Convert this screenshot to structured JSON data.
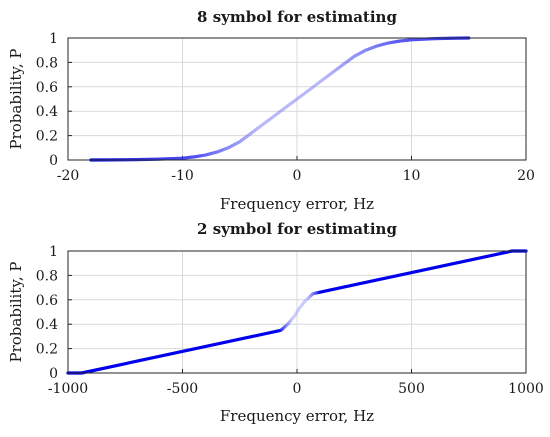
{
  "chart_data": [
    {
      "type": "line",
      "title": "8 symbol for estimating",
      "xlabel": "Frequency error, Hz",
      "ylabel": "Probability, P",
      "xlim": [
        -20,
        20
      ],
      "ylim": [
        0,
        1
      ],
      "xticks": [
        "-20",
        "-10",
        "0",
        "10",
        "20"
      ],
      "yticks": [
        "0",
        "0.2",
        "0.4",
        "0.6",
        "0.8",
        "1"
      ],
      "grid": true,
      "legend": "none",
      "series": [
        {
          "color": "#0000ee",
          "x": [
            -18,
            -16,
            -14,
            -12,
            -10,
            -9,
            -8,
            -7,
            -6,
            -5,
            -4,
            -3,
            -2,
            -1,
            0,
            1,
            2,
            3,
            4,
            5,
            6,
            7,
            8,
            9,
            10,
            12,
            14,
            15
          ],
          "y": [
            0.0,
            0.001,
            0.003,
            0.007,
            0.015,
            0.025,
            0.04,
            0.065,
            0.1,
            0.15,
            0.22,
            0.29,
            0.36,
            0.43,
            0.5,
            0.57,
            0.64,
            0.71,
            0.78,
            0.85,
            0.9,
            0.935,
            0.96,
            0.975,
            0.985,
            0.995,
            0.999,
            1.0
          ]
        }
      ]
    },
    {
      "type": "line",
      "title": "2 symbol for estimating",
      "xlabel": "Frequency error, Hz",
      "ylabel": "Probability, P",
      "xlim": [
        -1000,
        1000
      ],
      "ylim": [
        0,
        1
      ],
      "xticks": [
        "-1000",
        "-500",
        "0",
        "500",
        "1000"
      ],
      "yticks": [
        "0",
        "0.2",
        "0.4",
        "0.6",
        "0.8",
        "1"
      ],
      "grid": true,
      "legend": "none",
      "series": [
        {
          "color": "#0000ee",
          "x": [
            -1000,
            -940,
            -70,
            -40,
            -10,
            10,
            40,
            70,
            940,
            1000
          ],
          "y": [
            0.0,
            0.0,
            0.35,
            0.4,
            0.47,
            0.53,
            0.6,
            0.65,
            1.0,
            1.0
          ]
        }
      ]
    }
  ]
}
